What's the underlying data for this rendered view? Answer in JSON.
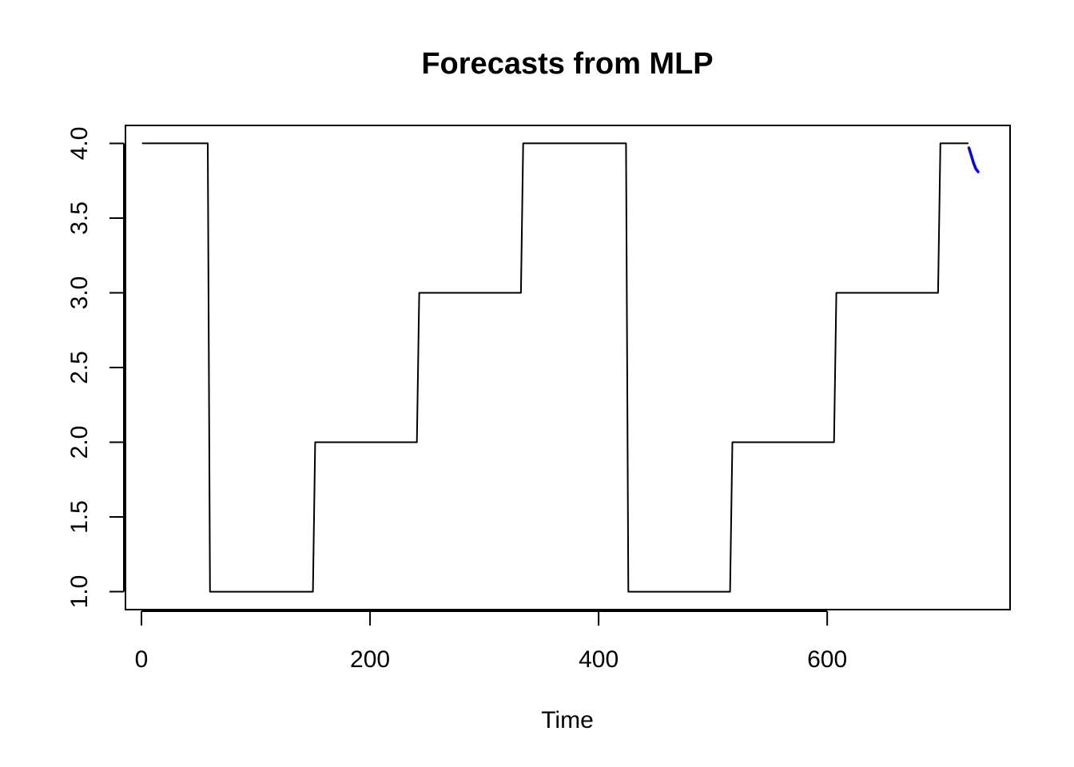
{
  "chart_data": {
    "type": "line",
    "title": "Forecasts from MLP",
    "xlabel": "Time",
    "ylabel": "",
    "xlim": [
      -14,
      760
    ],
    "ylim": [
      0.88,
      4.12
    ],
    "x_ticks": [
      0,
      200,
      400,
      600
    ],
    "x_tick_labels": [
      "0",
      "200",
      "400",
      "600"
    ],
    "y_ticks": [
      1.0,
      1.5,
      2.0,
      2.5,
      3.0,
      3.5,
      4.0
    ],
    "y_tick_labels": [
      "1.0",
      "1.5",
      "2.0",
      "2.5",
      "3.0",
      "3.5",
      "4.0"
    ],
    "grid": false,
    "series": [
      {
        "color": "#000000",
        "points": [
          [
            1,
            4
          ],
          [
            58,
            4
          ],
          [
            60,
            1
          ],
          [
            150,
            1
          ],
          [
            152,
            2
          ],
          [
            241,
            2
          ],
          [
            243,
            3
          ],
          [
            332,
            3
          ],
          [
            334,
            4
          ],
          [
            424,
            4
          ],
          [
            426,
            1
          ],
          [
            515,
            1
          ],
          [
            517,
            2
          ],
          [
            606,
            2
          ],
          [
            608,
            3
          ],
          [
            697,
            3
          ],
          [
            699,
            4
          ],
          [
            723,
            4
          ]
        ]
      },
      {
        "color": "#0000ff",
        "points": [
          [
            724,
            3.97
          ],
          [
            726,
            3.92
          ],
          [
            728,
            3.87
          ],
          [
            730,
            3.83
          ],
          [
            732,
            3.81
          ]
        ]
      }
    ]
  }
}
